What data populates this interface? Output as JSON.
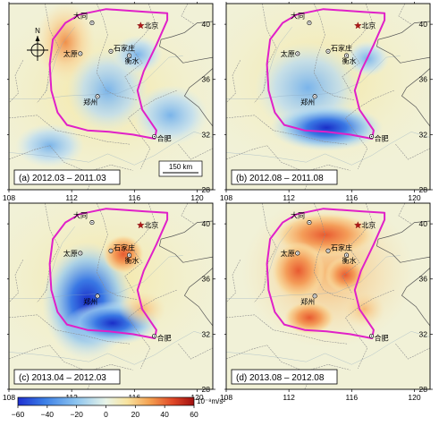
{
  "axes": {
    "lon_ticks": [
      "108",
      "112",
      "116",
      "120"
    ],
    "lat_ticks": [
      "28",
      "32",
      "36",
      "40"
    ],
    "lon_range": [
      108,
      121
    ],
    "lat_range": [
      28,
      41.5
    ]
  },
  "panels": [
    {
      "label": "(a) 2012.03 – 2011.03",
      "scale_label": "150 km"
    },
    {
      "label": "(b) 2012.08 – 2011.08"
    },
    {
      "label": "(c) 2013.04 – 2012.03"
    },
    {
      "label": "(d) 2013.08 – 2012.08"
    }
  ],
  "cities": [
    {
      "name": "大同",
      "lon": 113.3,
      "lat": 40.1,
      "marker": "circle"
    },
    {
      "name": "北京",
      "lon": 116.4,
      "lat": 39.9,
      "marker": "star"
    },
    {
      "name": "太原",
      "lon": 112.55,
      "lat": 37.87,
      "marker": "circle"
    },
    {
      "name": "石家庄",
      "lon": 114.5,
      "lat": 38.04,
      "marker": "circle"
    },
    {
      "name": "衡水",
      "lon": 115.67,
      "lat": 37.73,
      "marker": "circle"
    },
    {
      "name": "郑州",
      "lon": 113.65,
      "lat": 34.76,
      "marker": "circle"
    },
    {
      "name": "合肥",
      "lon": 117.27,
      "lat": 31.86,
      "marker": "circle"
    }
  ],
  "compass_label": "N",
  "colorbar": {
    "ticks": [
      "−60",
      "−40",
      "−20",
      "0",
      "20",
      "40",
      "60"
    ],
    "range": [
      -60,
      60
    ],
    "unit": "10⁻⁸m/s²",
    "colors": [
      "#1e2fd0",
      "#3b7ee6",
      "#8cc4ef",
      "#e8f4e8",
      "#f8e4a0",
      "#f4a050",
      "#e04828",
      "#a01010"
    ]
  }
}
